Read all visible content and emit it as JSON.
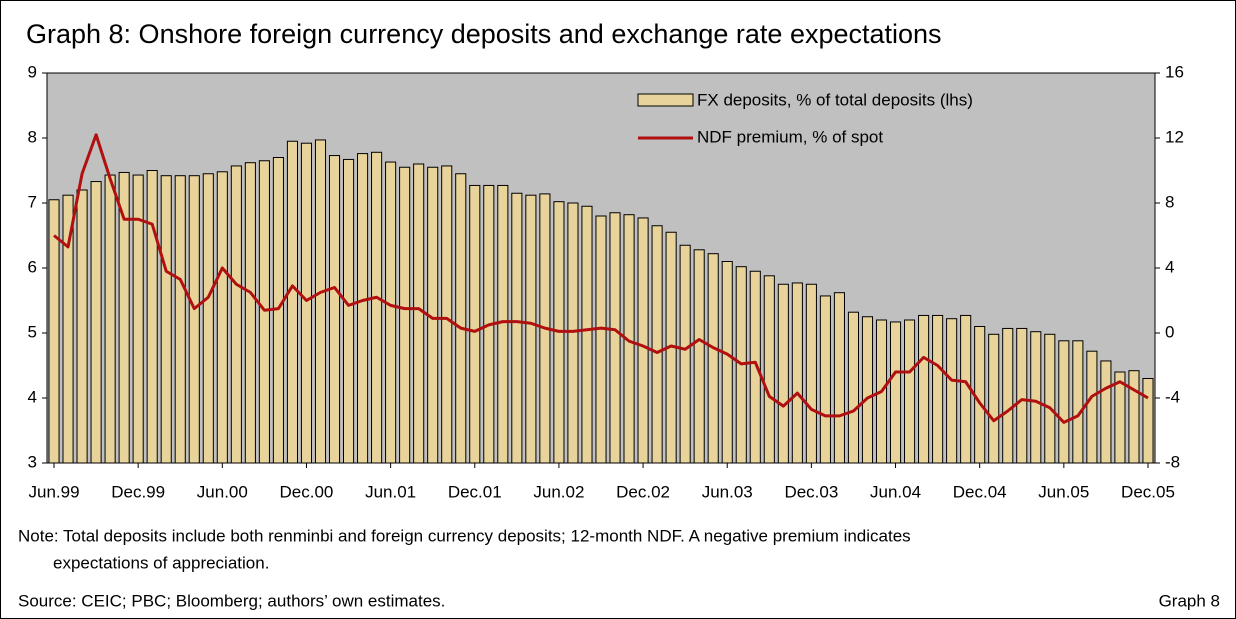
{
  "chart_data": {
    "type": "bar_line",
    "title": "Graph 8: Onshore foreign currency deposits and exchange rate expectations",
    "categories": [
      "Jun.99",
      null,
      null,
      null,
      null,
      null,
      "Dec.99",
      null,
      null,
      null,
      null,
      null,
      "Jun.00",
      null,
      null,
      null,
      null,
      null,
      "Dec.00",
      null,
      null,
      null,
      null,
      null,
      "Jun.01",
      null,
      null,
      null,
      null,
      null,
      "Dec.01",
      null,
      null,
      null,
      null,
      null,
      "Jun.02",
      null,
      null,
      null,
      null,
      null,
      "Dec.02",
      null,
      null,
      null,
      null,
      null,
      "Jun.03",
      null,
      null,
      null,
      null,
      null,
      "Dec.03",
      null,
      null,
      null,
      null,
      null,
      "Jun.04",
      null,
      null,
      null,
      null,
      null,
      "Dec.04",
      null,
      null,
      null,
      null,
      null,
      "Jun.05",
      null,
      null,
      null,
      null,
      null,
      "Dec.05"
    ],
    "series": [
      {
        "name": "FX deposits, % of total deposits (lhs)",
        "color": "#e8d39a",
        "axis": "y",
        "values": [
          7.05,
          7.12,
          7.2,
          7.33,
          7.43,
          7.47,
          7.43,
          7.5,
          7.42,
          7.42,
          7.42,
          7.45,
          7.48,
          7.57,
          7.62,
          7.65,
          7.7,
          7.95,
          7.92,
          7.97,
          7.73,
          7.67,
          7.76,
          7.78,
          7.63,
          7.55,
          7.6,
          7.55,
          7.57,
          7.45,
          7.27,
          7.27,
          7.27,
          7.15,
          7.12,
          7.14,
          7.02,
          7.0,
          6.95,
          6.8,
          6.85,
          6.82,
          6.77,
          6.65,
          6.55,
          6.35,
          6.28,
          6.22,
          6.1,
          6.02,
          5.95,
          5.88,
          5.75,
          5.77,
          5.75,
          5.57,
          5.62,
          5.32,
          5.25,
          5.2,
          5.17,
          5.2,
          5.27,
          5.27,
          5.22,
          5.27,
          5.1,
          4.98,
          5.07,
          5.07,
          5.02,
          4.98,
          4.88,
          4.88,
          4.72,
          4.57,
          4.4,
          4.42,
          4.3
        ]
      },
      {
        "name": "NDF premium, % of spot",
        "color": "#b01010",
        "axis": "y2",
        "values": [
          6,
          5.3,
          9.8,
          12.2,
          9.5,
          7,
          7,
          6.7,
          3.8,
          3.3,
          1.5,
          2.2,
          4,
          3,
          2.5,
          1.4,
          1.5,
          2.9,
          2,
          2.5,
          2.8,
          1.7,
          2,
          2.2,
          1.7,
          1.5,
          1.5,
          0.9,
          0.9,
          0.3,
          0.1,
          0.5,
          0.7,
          0.7,
          0.6,
          0.3,
          0.1,
          0.1,
          0.2,
          0.3,
          0.2,
          -0.5,
          -0.8,
          -1.2,
          -0.8,
          -1,
          -0.4,
          -0.9,
          -1.3,
          -1.9,
          -1.8,
          -3.9,
          -4.5,
          -3.7,
          -4.7,
          -5.1,
          -5.1,
          -4.8,
          -4,
          -3.6,
          -2.4,
          -2.4,
          -1.5,
          -2,
          -2.9,
          -3,
          -4.3,
          -5.4,
          -4.8,
          -4.1,
          -4.2,
          -4.6,
          -5.5,
          -5.1,
          -3.9,
          -3.4,
          -3,
          -3.5,
          -4
        ]
      }
    ],
    "ylim": [
      3,
      9
    ],
    "yticks": [
      3,
      4,
      5,
      6,
      7,
      8,
      9
    ],
    "y2lim": [
      -8,
      16
    ],
    "y2ticks": [
      -8,
      -4,
      0,
      4,
      8,
      12,
      16
    ],
    "background": "#c0c0c0",
    "note": "Note: Total deposits include both renminbi and foreign currency deposits; 12-month NDF. A negative premium indicates",
    "note_cont": "expectations of appreciation.",
    "source": "Source: CEIC; PBC; Bloomberg; authors’ own estimates.",
    "graph_label": "Graph 8"
  }
}
